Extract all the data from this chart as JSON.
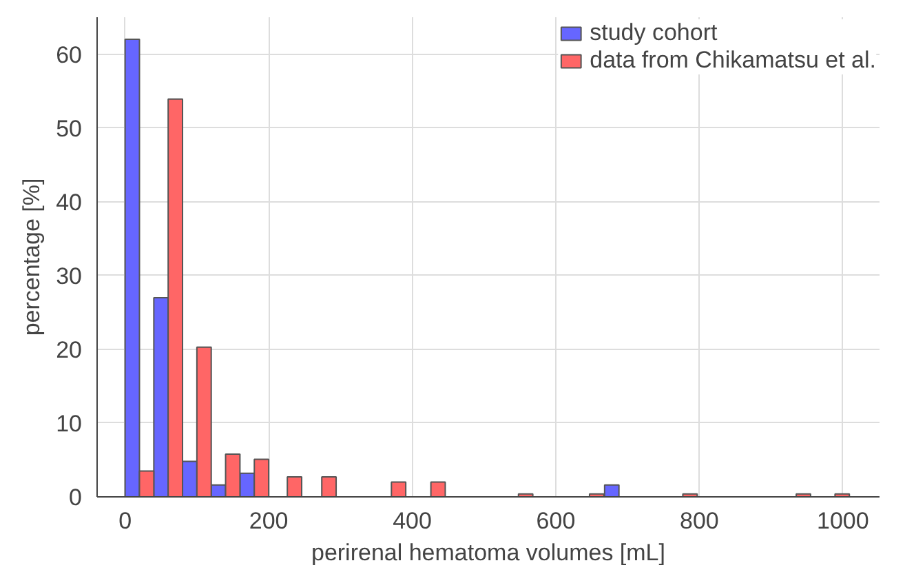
{
  "chart_data": {
    "type": "bar",
    "xlabel": "perirenal hematoma volumes [mL]",
    "ylabel": "percentage [%]",
    "series": [
      {
        "name": "study cohort",
        "color": "#6666ff",
        "x": [
          10,
          50,
          90,
          130,
          170,
          678
        ],
        "values": [
          62,
          27,
          4.8,
          1.6,
          3.2,
          1.6
        ]
      },
      {
        "name": "data from Chikamatsu et al.",
        "color": "#ff6666",
        "x": [
          30,
          70,
          110,
          150,
          190,
          236,
          284,
          381,
          436,
          558,
          657,
          787,
          945,
          999
        ],
        "values": [
          3.5,
          53.9,
          20.3,
          5.8,
          5.1,
          2.7,
          2.7,
          2.0,
          2.0,
          0.4,
          0.4,
          0.4,
          0.4,
          0.4
        ]
      }
    ],
    "xlim": [
      -39,
      1051
    ],
    "xticks": [
      0,
      200,
      400,
      600,
      800,
      1000
    ],
    "ylim": [
      0,
      65
    ],
    "yticks": [
      0,
      10,
      20,
      30,
      40,
      50,
      60
    ],
    "grid": true,
    "legend": "top right"
  }
}
